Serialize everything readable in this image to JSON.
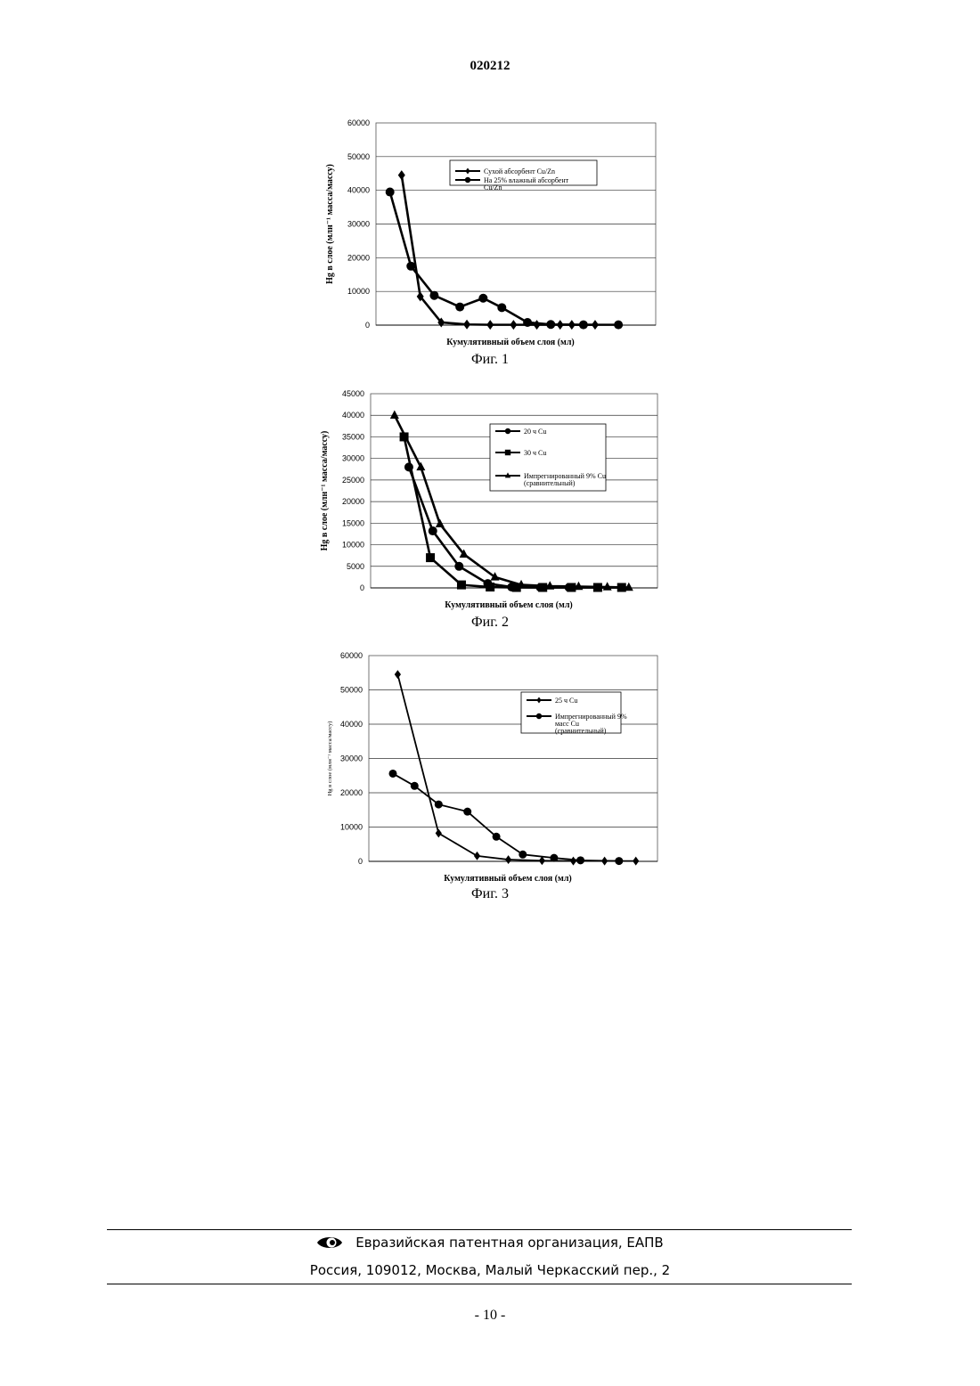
{
  "document": {
    "number": "020212",
    "page_number": "- 10 -"
  },
  "chart_data": [
    {
      "type": "line",
      "caption": "Фиг. 1",
      "xlabel": "Кумулятивный объем слоя (мл)",
      "ylabel": "Hg в слое (млн⁻¹ масса/массу)",
      "ylim": [
        0,
        60000
      ],
      "yticks": [
        0,
        10000,
        20000,
        30000,
        40000,
        50000,
        60000
      ],
      "xlim": [
        0,
        12
      ],
      "x_ticks_shown": false,
      "grid": true,
      "legend_position": "top-center",
      "series": [
        {
          "name": "Сухой абсорбент Cu/Zn",
          "marker": "diamond",
          "x": [
            1.1,
            1.9,
            2.8,
            3.9,
            4.9,
            5.9,
            6.9,
            7.9,
            8.4,
            9.4
          ],
          "values": [
            44500,
            8500,
            800,
            200,
            100,
            100,
            100,
            100,
            100,
            100
          ]
        },
        {
          "name": "На 25% влажный абсорбент Cu/Zn",
          "marker": "circle",
          "x": [
            0.6,
            1.5,
            2.5,
            3.6,
            4.6,
            5.4,
            6.5,
            7.5,
            8.9,
            10.4
          ],
          "values": [
            39500,
            17500,
            8800,
            5400,
            8000,
            5200,
            800,
            200,
            100,
            100
          ]
        }
      ]
    },
    {
      "type": "line",
      "caption": "Фиг. 2",
      "xlabel": "Кумулятивный объем слоя (мл)",
      "ylabel": "Hg в слое (млн⁻¹ масса/массу)",
      "ylim": [
        0,
        45000
      ],
      "yticks": [
        0,
        5000,
        10000,
        15000,
        20000,
        25000,
        30000,
        35000,
        40000,
        45000
      ],
      "xlim": [
        0,
        12
      ],
      "x_ticks_shown": false,
      "grid": true,
      "legend_position": "top-right",
      "series": [
        {
          "name": "20 ч Cu",
          "marker": "circle",
          "x": [
            1.6,
            2.6,
            3.7,
            4.9,
            5.9,
            7.1,
            8.3,
            9.5,
            10.5
          ],
          "values": [
            28000,
            13200,
            5000,
            1000,
            200,
            100,
            100,
            100,
            100
          ]
        },
        {
          "name": "30 ч Cu",
          "marker": "square",
          "x": [
            1.4,
            2.5,
            3.8,
            5.0,
            6.1,
            7.2,
            8.4,
            9.5,
            10.5
          ],
          "values": [
            35000,
            7000,
            700,
            200,
            100,
            100,
            100,
            100,
            100
          ]
        },
        {
          "name": "Импрегнированный 9% Cu (сравнительный)",
          "marker": "triangle",
          "x": [
            1.0,
            2.1,
            2.9,
            3.9,
            5.2,
            6.3,
            7.5,
            8.7,
            9.9,
            10.8
          ],
          "values": [
            40000,
            28000,
            14800,
            7800,
            2500,
            700,
            400,
            300,
            200,
            100
          ]
        }
      ]
    },
    {
      "type": "line",
      "caption": "Фиг. 3",
      "xlabel": "Кумулятивный объем слоя (мл)",
      "ylabel": "Hg в слое (млн⁻¹ масса/массу)",
      "ylim": [
        0,
        60000
      ],
      "yticks": [
        0,
        10000,
        20000,
        30000,
        40000,
        50000,
        60000
      ],
      "xlim": [
        0,
        12
      ],
      "x_ticks_shown": false,
      "grid": true,
      "legend_position": "top-right",
      "series": [
        {
          "name": "25 ч Cu",
          "marker": "diamond",
          "x": [
            1.2,
            2.9,
            4.5,
            5.8,
            7.2,
            8.5,
            9.8,
            11.1
          ],
          "values": [
            54500,
            8200,
            1600,
            500,
            200,
            100,
            100,
            100
          ]
        },
        {
          "name": "Импрегнированный 9% масс Cu (сравнительный)",
          "marker": "circle",
          "x": [
            1.0,
            1.9,
            2.9,
            4.1,
            5.3,
            6.4,
            7.7,
            8.8,
            10.4
          ],
          "values": [
            25600,
            22000,
            16600,
            14500,
            7200,
            2000,
            1000,
            300,
            100
          ]
        }
      ]
    }
  ],
  "footer": {
    "org": "Евразийская патентная организация, ЕАПВ",
    "address": "Россия, 109012, Москва, Малый Черкасский пер., 2"
  }
}
